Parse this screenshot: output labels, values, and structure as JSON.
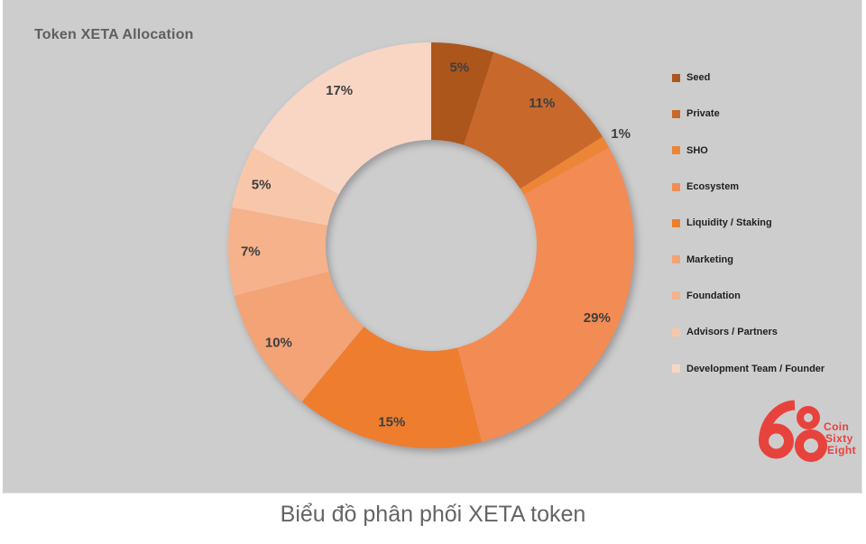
{
  "panel": {
    "title": "Token XETA Allocation",
    "background": "#CDCDCD"
  },
  "caption": "Biểu đồ phân phối XETA token",
  "logo": {
    "name": "coin-sixty-eight-68",
    "number": "68",
    "lines": [
      "Coin",
      "Sixty",
      "Eight"
    ],
    "color": "#E8423C"
  },
  "chart_data": {
    "type": "pie",
    "subtype": "donut",
    "title": "Token XETA Allocation",
    "legend_position": "right",
    "direction": "clockwise",
    "start_angle_deg": 0,
    "hole_color": "#FFFFFF",
    "background": "#CDCDCD",
    "categories": [
      "Seed",
      "Private",
      "SHO",
      "Ecosystem",
      "Liquidity / Staking",
      "Marketing",
      "Foundation",
      "Advisors / Partners",
      "Development Team / Founder"
    ],
    "values": [
      5,
      11,
      1,
      29,
      15,
      10,
      7,
      5,
      17
    ],
    "labels": [
      "5%",
      "11%",
      "1%",
      "29%",
      "15%",
      "10%",
      "7%",
      "5%",
      "17%"
    ],
    "colors": [
      "#AC561C",
      "#C8692B",
      "#ED8537",
      "#F28C54",
      "#EE7D2E",
      "#F3A376",
      "#F6B28A",
      "#F8C7AA",
      "#F9D6C4"
    ],
    "label_color": "#3E3E3E"
  }
}
